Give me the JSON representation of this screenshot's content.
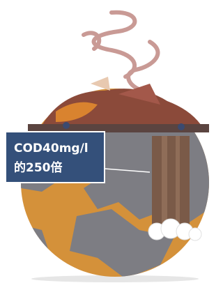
{
  "label": {
    "lines": [
      "COD40mg/l",
      "的250倍"
    ]
  }
}
